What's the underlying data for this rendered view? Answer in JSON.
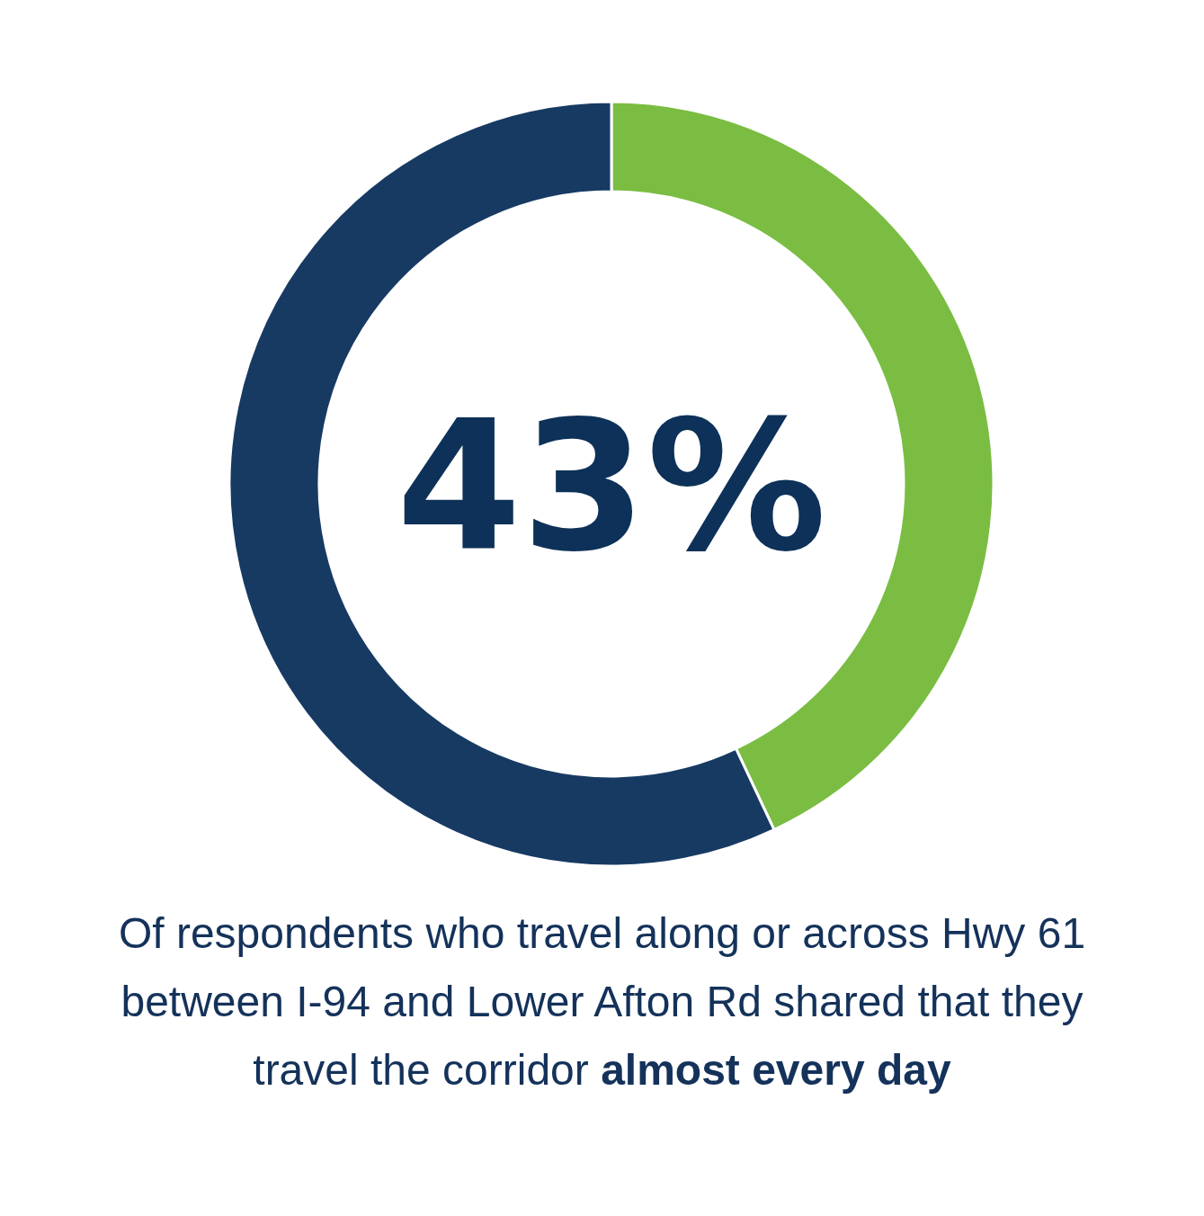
{
  "chart_data": {
    "type": "donut",
    "categories": [
      null,
      null
    ],
    "values": [
      43,
      57
    ],
    "colors": [
      "#7abd42",
      "#173a63"
    ],
    "annotations": [
      "43%",
      "Of respondents who travel along or across Hwy 61 between I-94 and Lower Afton Rd shared that they travel the corridor",
      "almost every day"
    ]
  }
}
